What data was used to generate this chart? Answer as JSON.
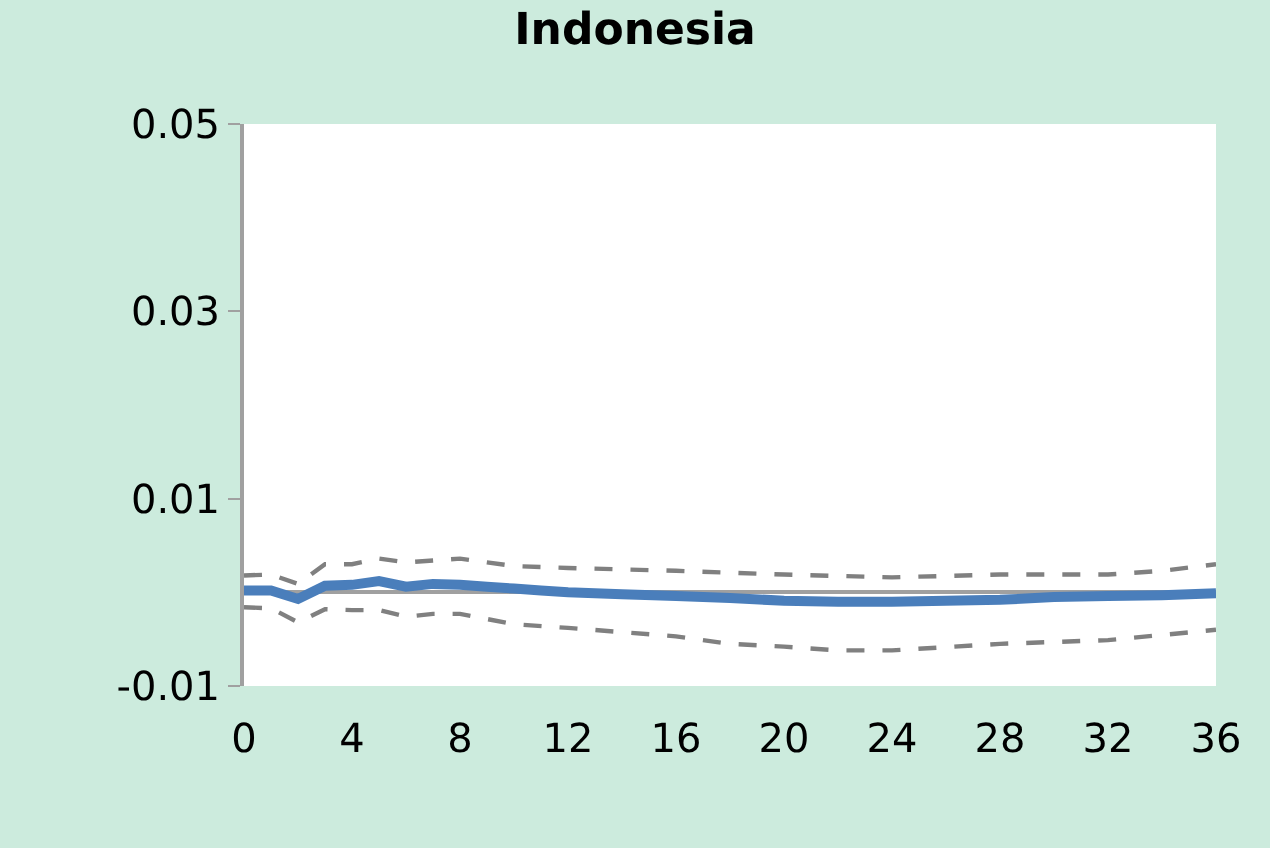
{
  "chart_data": {
    "type": "line",
    "title": "Indonesia",
    "xlim": [
      0,
      36
    ],
    "xticks": [
      0,
      4,
      8,
      12,
      16,
      20,
      24,
      28,
      32,
      36
    ],
    "ylim": [
      -0.01,
      0.05
    ],
    "yticks": [
      -0.01,
      0.01,
      0.03,
      0.05
    ],
    "marker": "none",
    "series": [
      {
        "color": "#4a7ebb",
        "line_style": "solid",
        "x": [
          0,
          1,
          2,
          3,
          4,
          5,
          6,
          7,
          8,
          9,
          10,
          11,
          12,
          14,
          16,
          18,
          20,
          22,
          24,
          26,
          28,
          30,
          32,
          34,
          36
        ],
        "values": [
          0.0002,
          0.0002,
          -0.0007,
          0.0007,
          0.0008,
          0.0012,
          0.0006,
          0.0009,
          0.0008,
          0.0006,
          0.0004,
          0.0002,
          0.0,
          -0.0002,
          -0.0004,
          -0.0006,
          -0.0009,
          -0.001,
          -0.001,
          -0.0009,
          -0.0008,
          -0.0005,
          -0.0004,
          -0.0003,
          -0.0001
        ]
      },
      {
        "color": "#808080",
        "line_style": "dashed",
        "x": [
          0,
          1,
          2,
          3,
          4,
          5,
          6,
          7,
          8,
          9,
          10,
          12,
          16,
          20,
          24,
          28,
          32,
          34,
          36
        ],
        "values": [
          0.0018,
          0.0019,
          0.0009,
          0.003,
          0.003,
          0.0036,
          0.0032,
          0.0034,
          0.0036,
          0.0032,
          0.0028,
          0.0026,
          0.0023,
          0.0019,
          0.0016,
          0.0019,
          0.0019,
          0.0023,
          0.003
        ]
      },
      {
        "color": "#808080",
        "line_style": "dashed",
        "x": [
          0,
          1,
          2,
          3,
          4,
          5,
          6,
          7,
          8,
          10,
          12,
          16,
          18,
          20,
          22,
          24,
          28,
          32,
          36
        ],
        "values": [
          -0.0016,
          -0.0017,
          -0.0032,
          -0.0018,
          -0.0019,
          -0.0019,
          -0.0026,
          -0.0023,
          -0.0023,
          -0.0034,
          -0.0038,
          -0.0047,
          -0.0055,
          -0.0058,
          -0.0062,
          -0.0062,
          -0.0055,
          -0.0051,
          -0.004
        ]
      }
    ]
  }
}
